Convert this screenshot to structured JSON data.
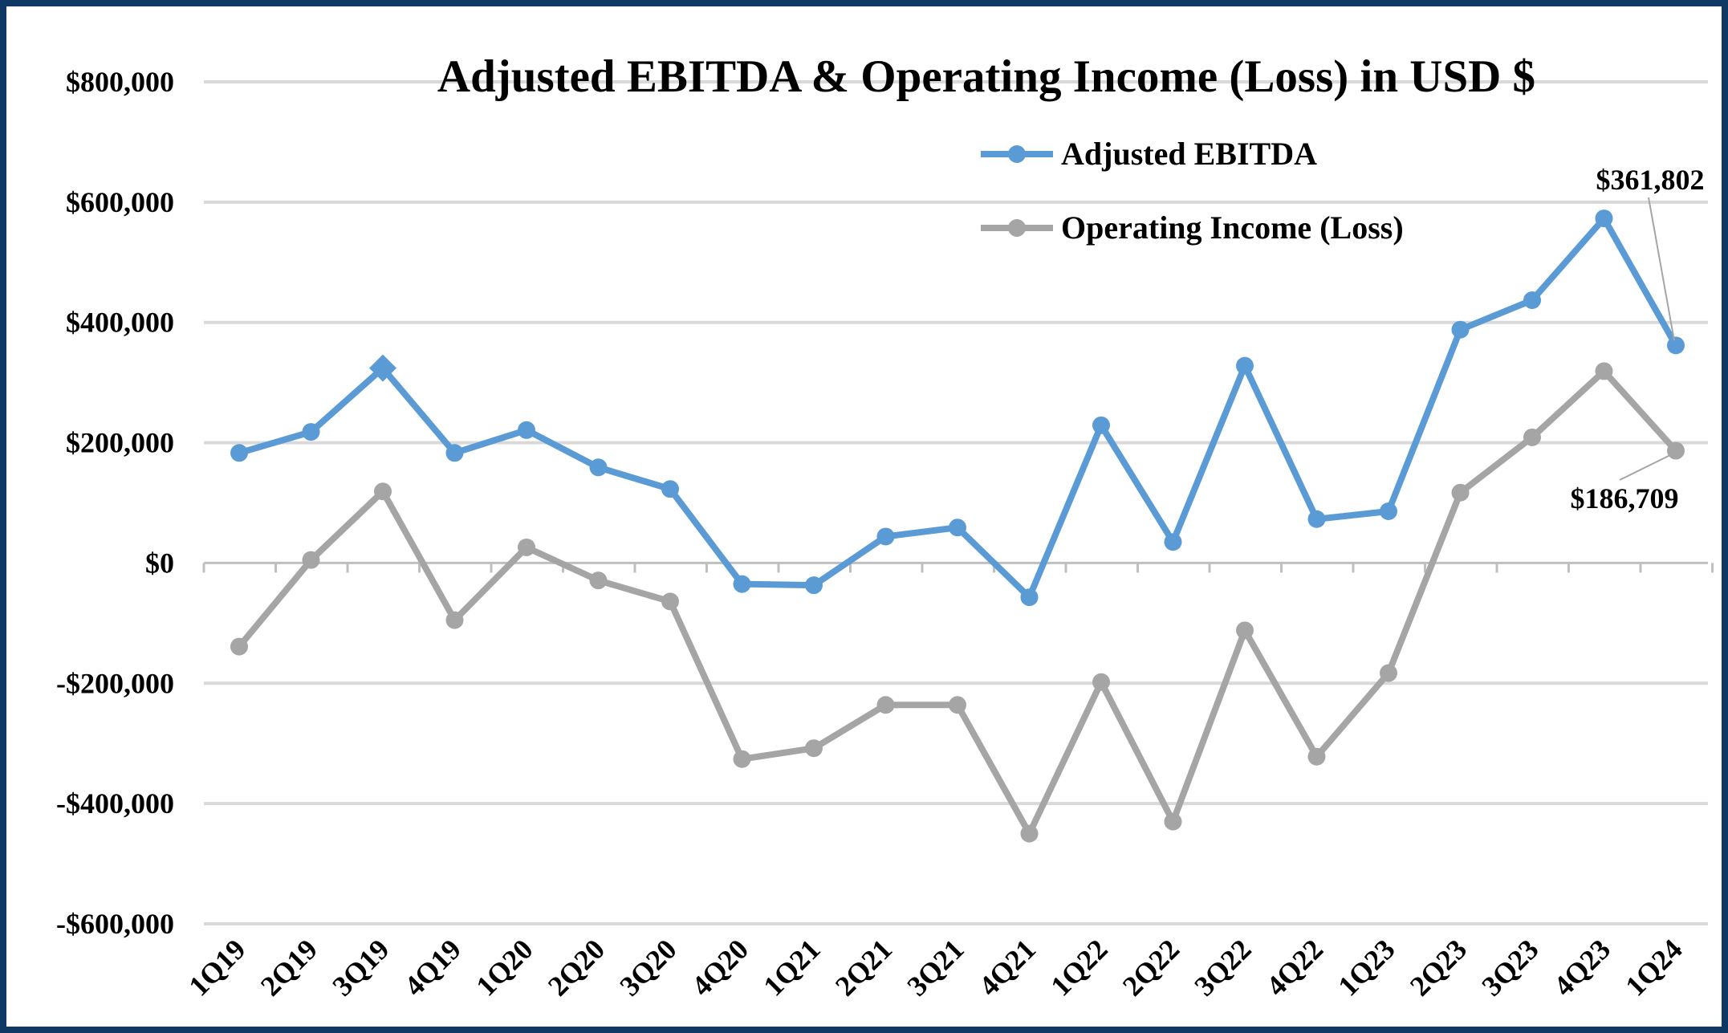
{
  "chart_data": {
    "type": "line",
    "title": "Adjusted EBITDA & Operating Income (Loss) in USD $",
    "xlabel": "",
    "ylabel": "",
    "ylim": [
      -600000,
      800000
    ],
    "yticks": [
      800000,
      600000,
      400000,
      200000,
      0,
      -200000,
      -400000,
      -600000
    ],
    "ytick_labels": [
      "$800,000",
      "$600,000",
      "$400,000",
      "$200,000",
      "$0",
      "-$200,000",
      "-$400,000",
      "-$600,000"
    ],
    "grid": true,
    "legend_placement": "top-center",
    "categories": [
      "1Q19",
      "2Q19",
      "3Q19",
      "4Q19",
      "1Q20",
      "2Q20",
      "3Q20",
      "4Q20",
      "1Q21",
      "2Q21",
      "3Q21",
      "4Q21",
      "1Q22",
      "2Q22",
      "3Q22",
      "4Q22",
      "1Q23",
      "2Q23",
      "3Q23",
      "4Q23",
      "1Q24"
    ],
    "series": [
      {
        "name": "Adjusted EBITDA",
        "color": "#5b9bd5",
        "values": [
          183000,
          218000,
          324000,
          183000,
          221000,
          159000,
          123000,
          -35000,
          -37000,
          44000,
          59000,
          -57000,
          229000,
          35000,
          328000,
          73000,
          86000,
          388000,
          437000,
          573000,
          361802
        ],
        "diamond_marker_index": 2,
        "last_label": "$361,802"
      },
      {
        "name": "Operating Income (Loss)",
        "color": "#a5a5a5",
        "values": [
          -139000,
          5000,
          119000,
          -95000,
          26000,
          -29000,
          -64000,
          -326000,
          -308000,
          -236000,
          -236000,
          -450000,
          -198000,
          -430000,
          -112000,
          -322000,
          -183000,
          117000,
          209000,
          319000,
          186709
        ],
        "last_label": "$186,709"
      }
    ]
  },
  "colors": {
    "border": "#0f3864",
    "grid": "#d9d9d9",
    "axis": "#bfbfbf"
  }
}
